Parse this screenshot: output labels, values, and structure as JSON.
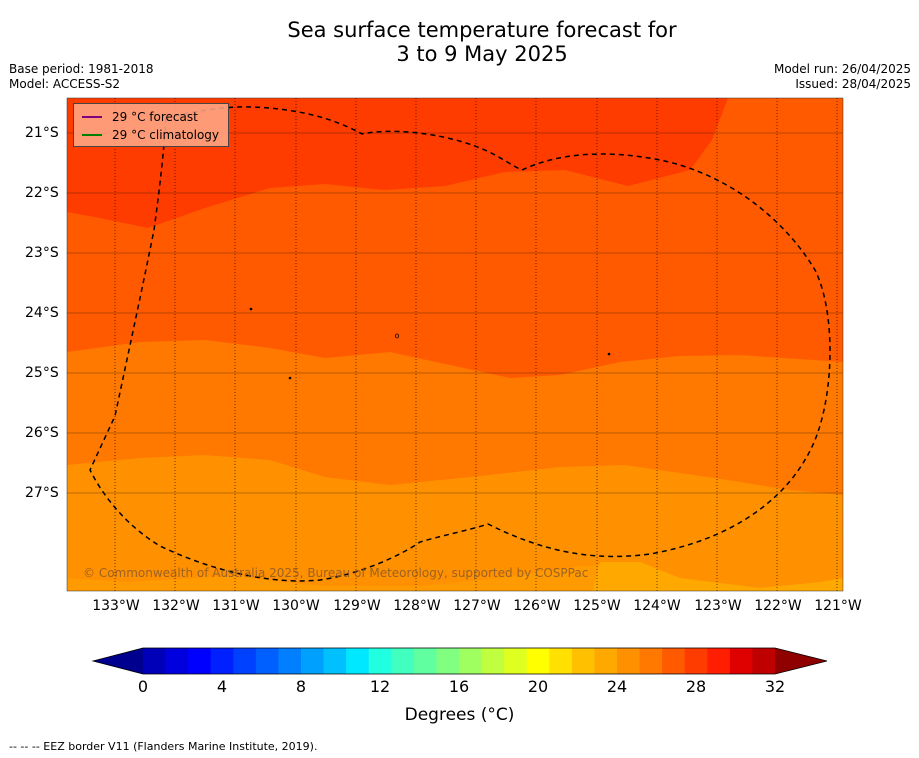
{
  "title_line1": "Sea surface temperature forecast for",
  "title_line2": "3 to 9 May 2025",
  "base_period": "Base period: 1981-2018",
  "model": "Model: ACCESS-S2",
  "model_run": "Model run: 26/04/2025",
  "issued": "Issued: 28/04/2025",
  "legend": {
    "forecast_label": "29 °C  forecast",
    "forecast_color": "#800080",
    "climatology_label": "29 °C  climatology",
    "climatology_color": "#008000"
  },
  "credit": "© Commonwealth of Australia 2025, Bureau of Meteorology, supported by COSPPac",
  "lat_labels": [
    "21°S",
    "22°S",
    "23°S",
    "24°S",
    "25°S",
    "26°S",
    "27°S"
  ],
  "lon_labels": [
    "133°W",
    "132°W",
    "131°W",
    "130°W",
    "129°W",
    "128°W",
    "127°W",
    "126°W",
    "125°W",
    "124°W",
    "123°W",
    "122°W",
    "121°W"
  ],
  "colorbar": {
    "ticks": [
      "0",
      "4",
      "8",
      "12",
      "16",
      "20",
      "24",
      "28",
      "32"
    ],
    "label": "Degrees (°C)",
    "colors": [
      "#00008f",
      "#0000b8",
      "#0000df",
      "#0000ff",
      "#0020ff",
      "#0040ff",
      "#0060ff",
      "#0080ff",
      "#00a0ff",
      "#00c0ff",
      "#00e8ff",
      "#20ffdf",
      "#40ffbf",
      "#60ff9f",
      "#80ff80",
      "#9fff60",
      "#bfff40",
      "#dfff20",
      "#ffff00",
      "#ffe000",
      "#ffc000",
      "#ffa800",
      "#ff9000",
      "#ff7800",
      "#ff5a00",
      "#ff3c00",
      "#ff1e00",
      "#df0000",
      "#bf0000",
      "#8f0000"
    ]
  },
  "footnote": "--  --  -- EEZ border V11 (Flanders Marine Institute, 2019)."
}
